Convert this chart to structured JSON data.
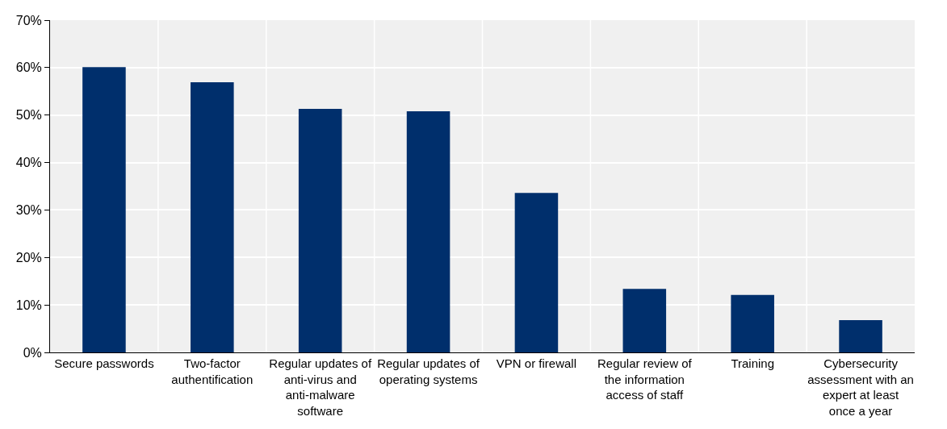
{
  "chart_data": {
    "type": "bar",
    "categories": [
      "Secure passwords",
      "Two-factor authentification",
      "Regular updates of anti-virus and anti-malware software",
      "Regular updates of operating systems",
      "VPN or firewall",
      "Regular review of the information access of staff",
      "Training",
      "Cybersecurity assessment with an expert at least once a year"
    ],
    "values": [
      60.1,
      56.9,
      51.3,
      50.8,
      33.6,
      13.4,
      12.1,
      6.8
    ],
    "color": "#002f6c",
    "ylim": [
      0,
      70
    ],
    "yticks": [
      {
        "value": 0,
        "label": "0%"
      },
      {
        "value": 10,
        "label": "10%"
      },
      {
        "value": 20,
        "label": "20%"
      },
      {
        "value": 30,
        "label": "30%"
      },
      {
        "value": 40,
        "label": "40%"
      },
      {
        "value": 50,
        "label": "50%"
      },
      {
        "value": 60,
        "label": "60%"
      },
      {
        "value": 70,
        "label": "70%"
      }
    ],
    "grid": true
  }
}
